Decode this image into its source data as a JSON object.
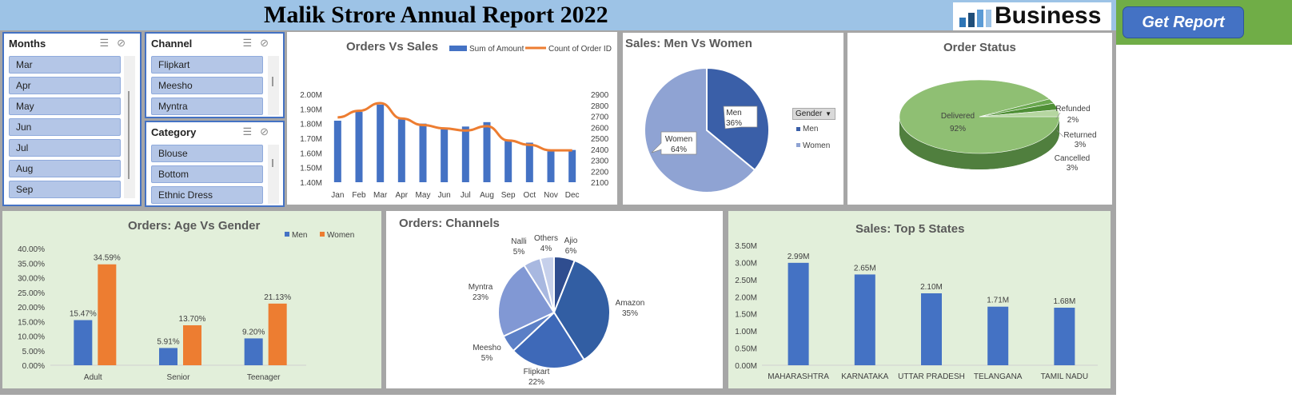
{
  "header": {
    "title": "Malik Strore Annual Report 2022",
    "logo_text": "Business",
    "report_button": "Get Report"
  },
  "slicers": {
    "months": {
      "title": "Months",
      "items": [
        "Mar",
        "Apr",
        "May",
        "Jun",
        "Jul",
        "Aug",
        "Sep"
      ]
    },
    "channel": {
      "title": "Channel",
      "items": [
        "Flipkart",
        "Meesho",
        "Myntra"
      ]
    },
    "category": {
      "title": "Category",
      "items": [
        "Blouse",
        "Bottom",
        "Ethnic Dress"
      ]
    }
  },
  "legend_gender": {
    "title": "Gender",
    "items": [
      "Men",
      "Women"
    ]
  },
  "colors": {
    "blue": "#4472c4",
    "orange": "#ed7d31",
    "green": "#70ad47",
    "title_bar": "#9dc3e6"
  },
  "chart_data": [
    {
      "id": "orders_vs_sales",
      "type": "bar",
      "title": "Orders Vs Sales",
      "categories": [
        "Jan",
        "Feb",
        "Mar",
        "Apr",
        "May",
        "Jun",
        "Jul",
        "Aug",
        "Sep",
        "Oct",
        "Nov",
        "Dec"
      ],
      "series": [
        {
          "name": "Sum of Amount",
          "type": "bar",
          "axis": "left",
          "values": [
            1.82,
            1.88,
            1.93,
            1.83,
            1.8,
            1.76,
            1.78,
            1.81,
            1.69,
            1.67,
            1.61,
            1.62
          ]
        },
        {
          "name": "Count of Order ID",
          "type": "line",
          "axis": "right",
          "values": [
            2690,
            2750,
            2820,
            2680,
            2620,
            2590,
            2570,
            2610,
            2480,
            2440,
            2390,
            2390
          ]
        }
      ],
      "ylim": [
        1.4,
        2.0
      ],
      "y_ticks": [
        "1.40M",
        "1.50M",
        "1.60M",
        "1.70M",
        "1.80M",
        "1.90M",
        "2.00M"
      ],
      "y2lim": [
        2100,
        2900
      ],
      "y2_ticks": [
        "2100",
        "2200",
        "2300",
        "2400",
        "2500",
        "2600",
        "2700",
        "2800",
        "2900"
      ],
      "legend": "top-right"
    },
    {
      "id": "sales_men_women",
      "type": "pie",
      "title": "Sales: Men Vs Women",
      "slices": [
        {
          "label": "Men",
          "value": 36,
          "text": "36%"
        },
        {
          "label": "Women",
          "value": 64,
          "text": "64%"
        }
      ]
    },
    {
      "id": "order_status",
      "type": "pie",
      "title": "Order Status",
      "slices": [
        {
          "label": "Delivered",
          "value": 92,
          "text": "92%"
        },
        {
          "label": "Refunded",
          "value": 2,
          "text": "2%"
        },
        {
          "label": "Returned",
          "value": 3,
          "text": "3%"
        },
        {
          "label": "Cancelled",
          "value": 3,
          "text": "3%"
        }
      ]
    },
    {
      "id": "age_vs_gender",
      "type": "bar",
      "title": "Orders: Age Vs Gender",
      "categories": [
        "Adult",
        "Senior",
        "Teenager"
      ],
      "series": [
        {
          "name": "Men",
          "values": [
            15.47,
            5.91,
            9.2
          ],
          "labels": [
            "15.47%",
            "5.91%",
            "9.20%"
          ]
        },
        {
          "name": "Women",
          "values": [
            34.59,
            13.7,
            21.13
          ],
          "labels": [
            "34.59%",
            "13.70%",
            "21.13%"
          ]
        }
      ],
      "ylim": [
        0,
        40
      ],
      "y_ticks": [
        "0.00%",
        "5.00%",
        "10.00%",
        "15.00%",
        "20.00%",
        "25.00%",
        "30.00%",
        "35.00%",
        "40.00%"
      ],
      "legend": "top-right"
    },
    {
      "id": "channels",
      "type": "pie",
      "title": "Orders: Channels",
      "slices": [
        {
          "label": "Ajio",
          "value": 6,
          "text": "6%"
        },
        {
          "label": "Amazon",
          "value": 35,
          "text": "35%"
        },
        {
          "label": "Flipkart",
          "value": 22,
          "text": "22%"
        },
        {
          "label": "Meesho",
          "value": 5,
          "text": "5%"
        },
        {
          "label": "Myntra",
          "value": 23,
          "text": "23%"
        },
        {
          "label": "Nalli",
          "value": 5,
          "text": "5%"
        },
        {
          "label": "Others",
          "value": 4,
          "text": "4%"
        }
      ]
    },
    {
      "id": "top_states",
      "type": "bar",
      "title": "Sales: Top 5 States",
      "categories": [
        "MAHARASHTRA",
        "KARNATAKA",
        "UTTAR PRADESH",
        "TELANGANA",
        "TAMIL NADU"
      ],
      "values": [
        2.99,
        2.65,
        2.1,
        1.71,
        1.68
      ],
      "labels": [
        "2.99M",
        "2.65M",
        "2.10M",
        "1.71M",
        "1.68M"
      ],
      "ylim": [
        0,
        3.5
      ],
      "y_ticks": [
        "0.00M",
        "0.50M",
        "1.00M",
        "1.50M",
        "2.00M",
        "2.50M",
        "3.00M",
        "3.50M"
      ]
    }
  ]
}
